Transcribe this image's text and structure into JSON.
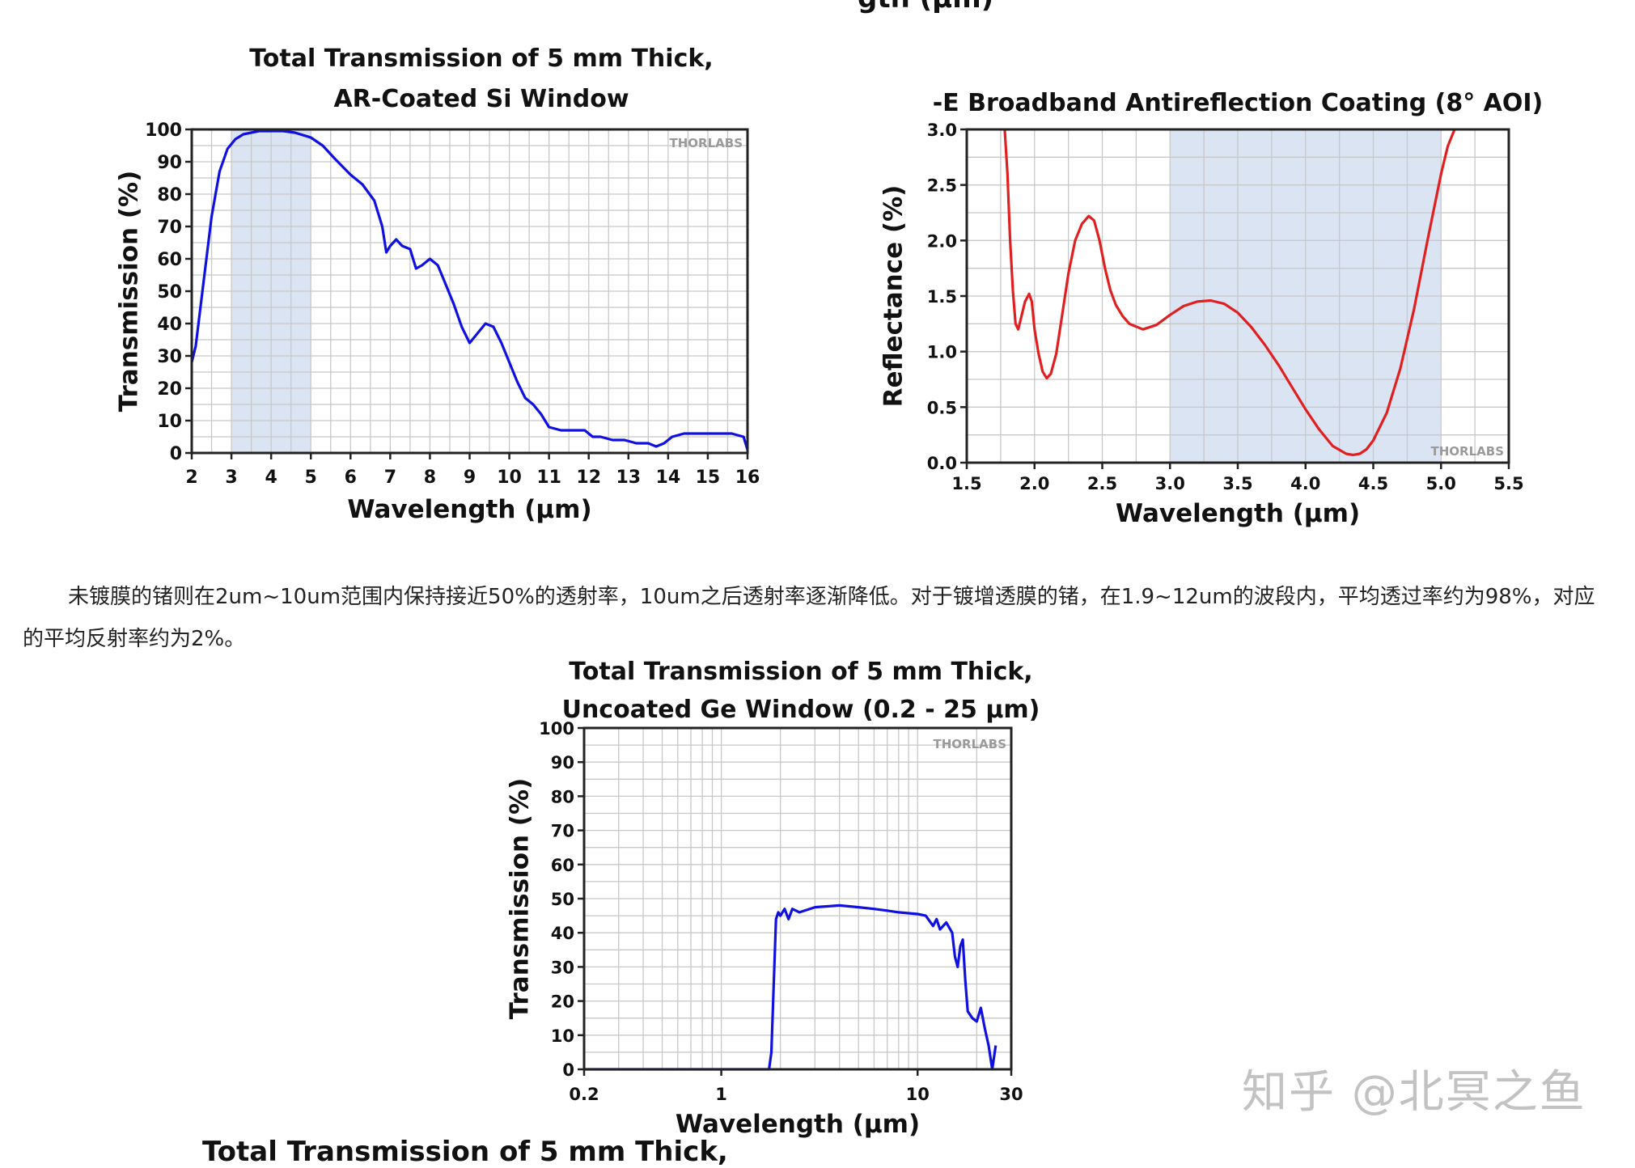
{
  "top_cut_text": "gth (µm)",
  "chart_data": [
    {
      "type": "line",
      "title": "Total Transmission of 5 mm Thick,",
      "subtitle": "AR-Coated Si Window",
      "xlabel": "Wavelength (µm)",
      "ylabel": "Transmission (%)",
      "xlim": [
        2,
        16
      ],
      "ylim": [
        0,
        100
      ],
      "xticks": [
        "2",
        "3",
        "4",
        "5",
        "6",
        "7",
        "8",
        "9",
        "10",
        "11",
        "12",
        "13",
        "14",
        "15",
        "16"
      ],
      "yticks": [
        "0",
        "10",
        "20",
        "30",
        "40",
        "50",
        "60",
        "70",
        "80",
        "90",
        "100"
      ],
      "highlight_band": [
        3,
        5
      ],
      "logo_text": "THORLABS",
      "line_color": "#1010e0",
      "grid": true,
      "series": [
        {
          "x": [
            2.0,
            2.1,
            2.3,
            2.5,
            2.7,
            2.9,
            3.1,
            3.3,
            3.5,
            3.7,
            4.0,
            4.3,
            4.6,
            5.0,
            5.3,
            5.6,
            6.0,
            6.3,
            6.6,
            6.8,
            6.9,
            7.0,
            7.15,
            7.3,
            7.5,
            7.65,
            7.8,
            8.0,
            8.2,
            8.4,
            8.6,
            8.8,
            9.0,
            9.2,
            9.4,
            9.6,
            9.8,
            10.0,
            10.2,
            10.4,
            10.6,
            10.8,
            11.0,
            11.3,
            11.6,
            11.9,
            12.1,
            12.3,
            12.6,
            12.9,
            13.2,
            13.5,
            13.7,
            13.9,
            14.1,
            14.4,
            14.8,
            15.2,
            15.6,
            15.9,
            16.0
          ],
          "y": [
            28,
            33,
            53,
            73,
            87,
            94,
            97,
            98.5,
            99,
            99.5,
            99.5,
            99.5,
            99,
            97.5,
            95,
            91,
            86,
            83,
            78,
            70,
            62,
            64,
            66,
            64,
            63,
            57,
            58,
            60,
            58,
            52,
            46,
            39,
            34,
            37,
            40,
            39,
            34,
            28,
            22,
            17,
            15,
            12,
            8,
            7,
            7,
            7,
            5,
            5,
            4,
            4,
            3,
            3,
            2,
            3,
            5,
            6,
            6,
            6,
            6,
            5,
            1
          ]
        }
      ]
    },
    {
      "type": "line",
      "title": "-E Broadband Antireflection Coating (8° AOI)",
      "xlabel": "Wavelength (µm)",
      "ylabel": "Reflectance (%)",
      "xlim": [
        1.5,
        5.5
      ],
      "ylim": [
        0.0,
        3.0
      ],
      "xticks": [
        "1.5",
        "2.0",
        "2.5",
        "3.0",
        "3.5",
        "4.0",
        "4.5",
        "5.0",
        "5.5"
      ],
      "yticks": [
        "0.0",
        "0.5",
        "1.0",
        "1.5",
        "2.0",
        "2.5",
        "3.0"
      ],
      "highlight_band": [
        3.0,
        5.0
      ],
      "logo_text": "THORLABS",
      "line_color": "#e02020",
      "grid": true,
      "series": [
        {
          "x": [
            1.78,
            1.8,
            1.82,
            1.84,
            1.86,
            1.88,
            1.9,
            1.93,
            1.96,
            1.98,
            2.0,
            2.03,
            2.06,
            2.09,
            2.12,
            2.16,
            2.2,
            2.25,
            2.3,
            2.35,
            2.4,
            2.44,
            2.48,
            2.52,
            2.56,
            2.6,
            2.65,
            2.7,
            2.8,
            2.9,
            3.0,
            3.1,
            3.2,
            3.3,
            3.4,
            3.5,
            3.6,
            3.7,
            3.8,
            3.9,
            4.0,
            4.1,
            4.2,
            4.3,
            4.35,
            4.4,
            4.45,
            4.5,
            4.6,
            4.7,
            4.8,
            4.9,
            5.0,
            5.05,
            5.1
          ],
          "y": [
            3.0,
            2.6,
            2.0,
            1.55,
            1.25,
            1.2,
            1.3,
            1.45,
            1.52,
            1.45,
            1.2,
            0.98,
            0.82,
            0.76,
            0.8,
            0.98,
            1.3,
            1.7,
            2.0,
            2.15,
            2.22,
            2.18,
            2.0,
            1.75,
            1.55,
            1.42,
            1.32,
            1.25,
            1.2,
            1.24,
            1.33,
            1.41,
            1.45,
            1.46,
            1.43,
            1.35,
            1.22,
            1.06,
            0.88,
            0.68,
            0.48,
            0.3,
            0.15,
            0.08,
            0.07,
            0.08,
            0.12,
            0.2,
            0.45,
            0.85,
            1.38,
            2.0,
            2.6,
            2.85,
            3.0
          ]
        }
      ]
    },
    {
      "type": "line",
      "title": "Total Transmission of 5 mm Thick,",
      "subtitle": "Uncoated Ge Window (0.2 - 25 µm)",
      "xlabel": "Wavelength (µm)",
      "ylabel": "Transmission (%)",
      "xscale": "log",
      "xlim": [
        0.2,
        30
      ],
      "ylim": [
        0,
        100
      ],
      "xticks": [
        "0.2",
        "1",
        "10",
        "30"
      ],
      "yticks": [
        "0",
        "10",
        "20",
        "30",
        "40",
        "50",
        "60",
        "70",
        "80",
        "90",
        "100"
      ],
      "logo_text": "THORLABS",
      "line_color": "#1010e0",
      "grid": true,
      "series": [
        {
          "x": [
            0.2,
            0.5,
            1.0,
            1.5,
            1.75,
            1.8,
            1.85,
            1.9,
            1.95,
            2.0,
            2.1,
            2.2,
            2.3,
            2.5,
            3,
            4,
            5,
            6,
            7,
            8,
            10,
            11,
            12,
            12.5,
            13,
            14,
            15,
            15.5,
            16,
            16.5,
            17,
            17.5,
            18,
            19,
            20,
            21,
            22,
            23,
            24,
            25
          ],
          "y": [
            0,
            0,
            0,
            0,
            0,
            5,
            25,
            44,
            46,
            45,
            47,
            44,
            47,
            46,
            47.5,
            48,
            47.5,
            47,
            46.5,
            46,
            45.5,
            45,
            42,
            44,
            41,
            43,
            40,
            33,
            30,
            36,
            38,
            26,
            17,
            15,
            14,
            18,
            12,
            7,
            0,
            7
          ]
        }
      ]
    }
  ],
  "paragraph": "未镀膜的锗则在2um~10um范围内保持接近50%的透射率，10um之后透射率逐渐降低。对于镀增透膜的锗，在1.9~12um的波段内，平均透过率约为98%，对应的平均反射率约为2%。",
  "bottom_cut_text": "Total Transmission of 5 mm Thick,",
  "watermark": "知乎 @北冥之鱼"
}
